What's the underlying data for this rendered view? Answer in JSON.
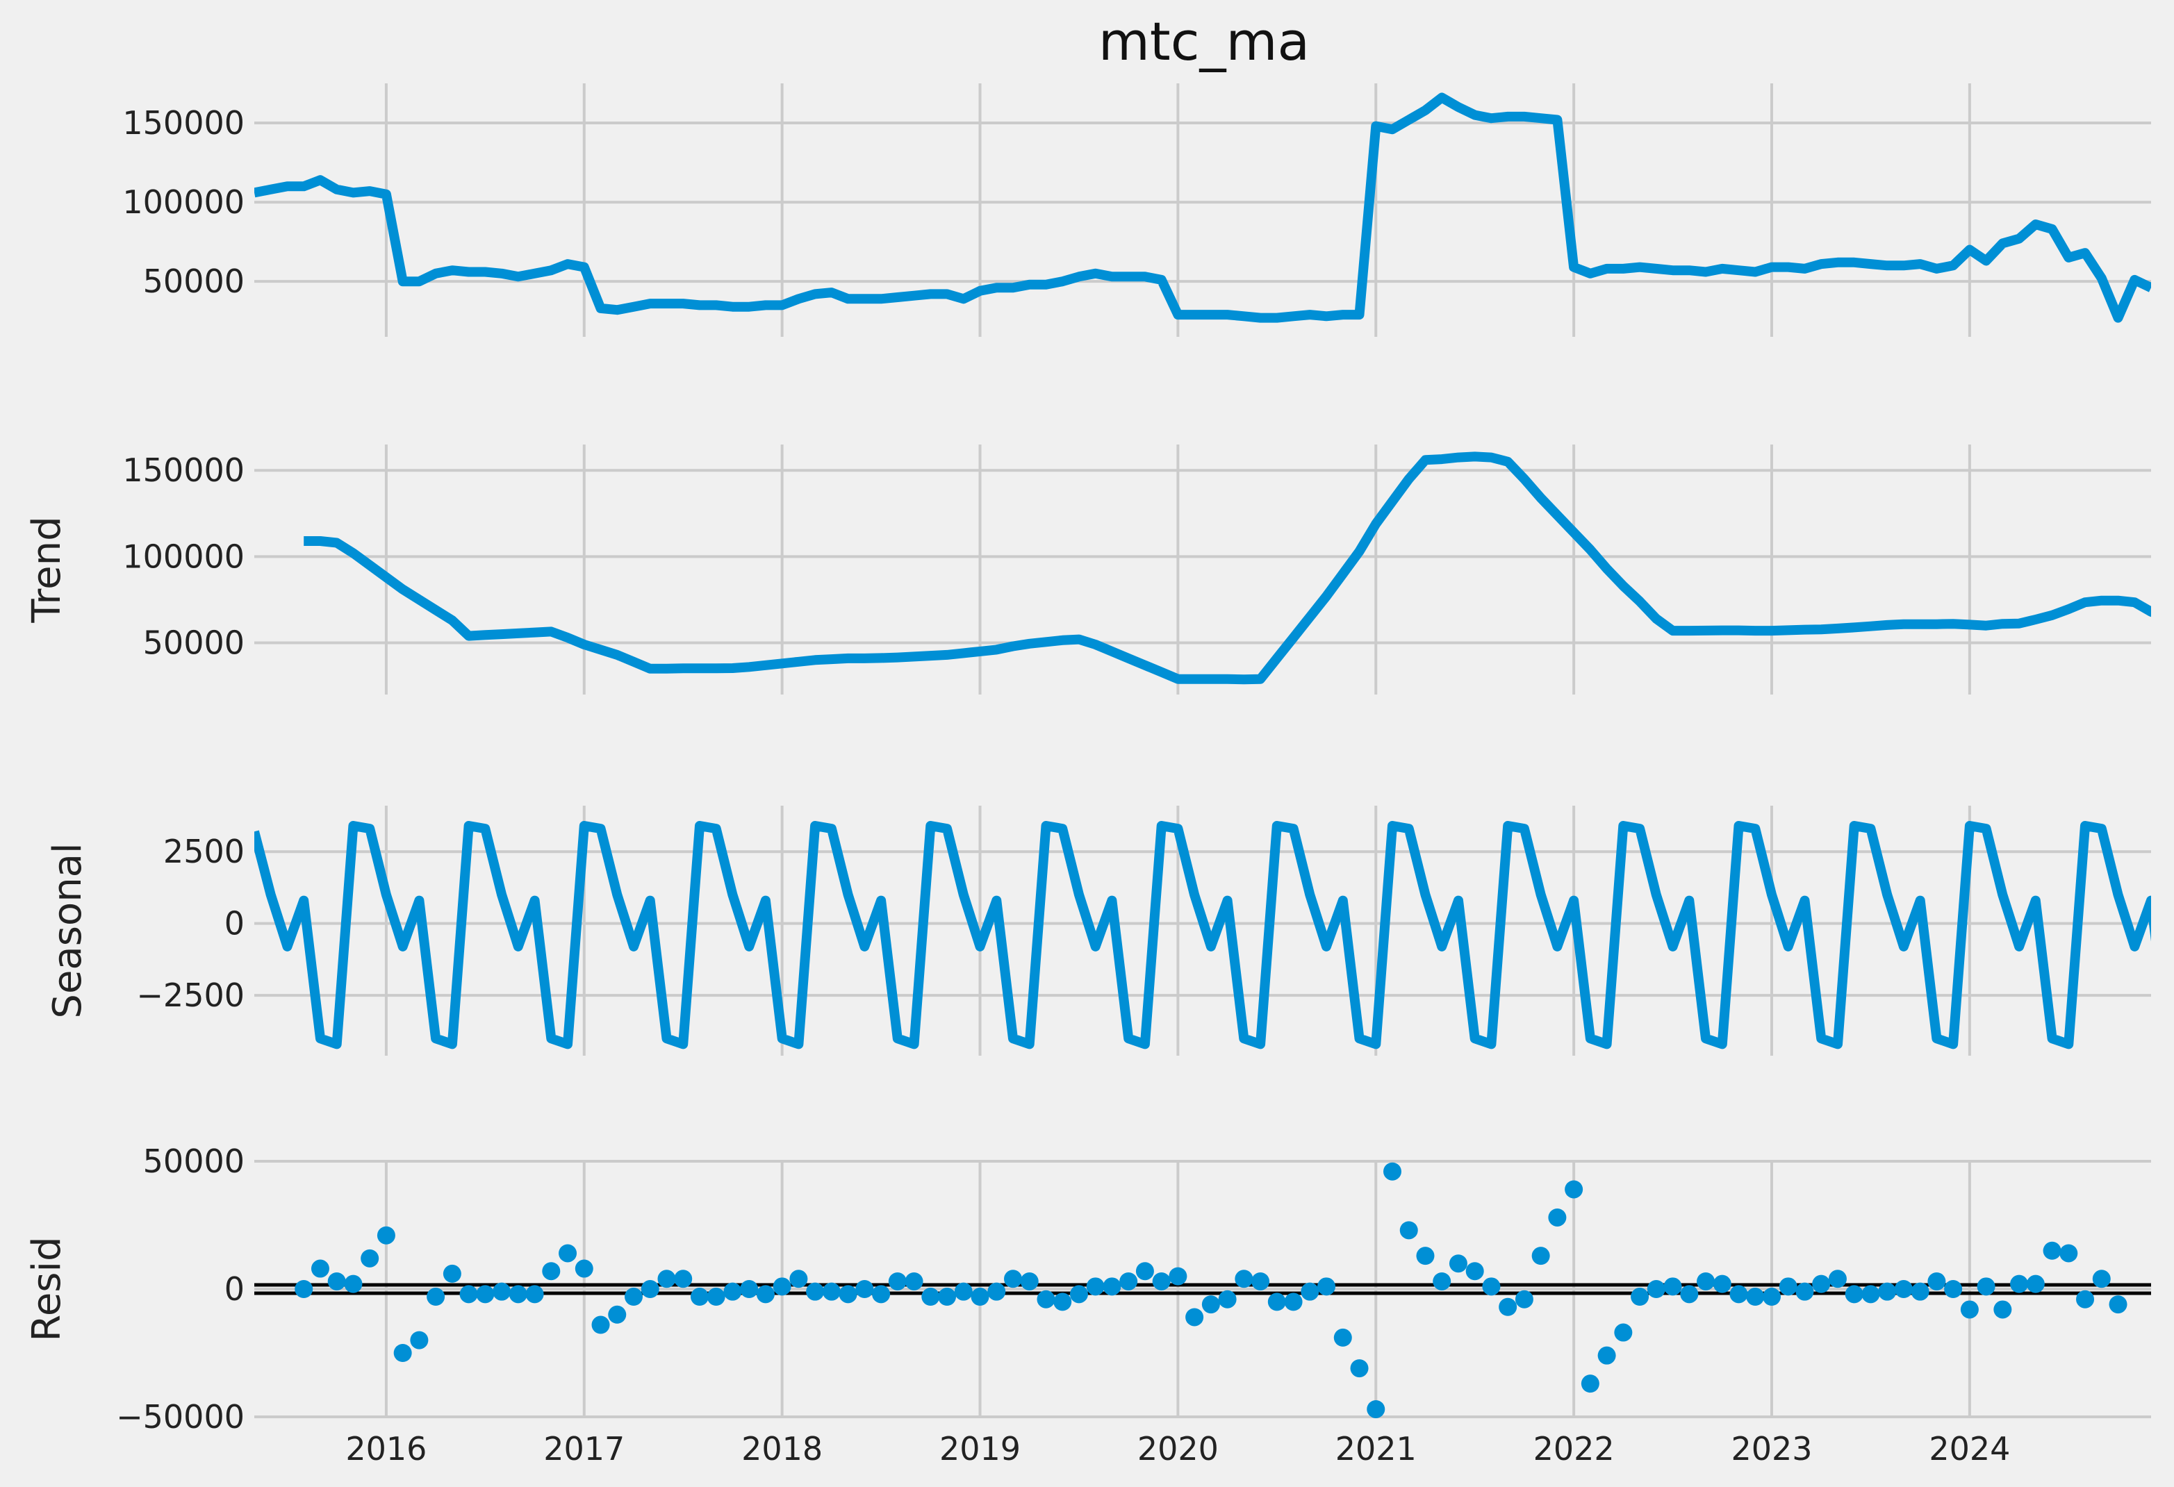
{
  "chart_data": {
    "type": "line",
    "title": "mtc_ma",
    "x_tick_labels": [
      "2016",
      "2017",
      "2018",
      "2019",
      "2020",
      "2021",
      "2022",
      "2023",
      "2024"
    ],
    "x_range": [
      "2015-05",
      "2024-12"
    ],
    "x_start": "2015-05",
    "grid": true,
    "colors": {
      "series": "#008fd5",
      "background": "#f0f0f0",
      "grid": "#cbcbcb",
      "zero_line": "#000000"
    },
    "panels": [
      {
        "name": "observed",
        "ylabel": "",
        "type": "line",
        "ylim": [
          15000,
          175000
        ],
        "yticks": [
          50000,
          100000,
          150000
        ],
        "ytick_labels": [
          "50000",
          "100000",
          "150000"
        ],
        "values": [
          106000,
          108000,
          110000,
          110000,
          114000,
          108000,
          106000,
          107000,
          105000,
          50000,
          50000,
          55000,
          57000,
          56000,
          56000,
          55000,
          53000,
          55000,
          57000,
          61000,
          59000,
          33000,
          32000,
          34000,
          36000,
          36000,
          36000,
          35000,
          35000,
          34000,
          34000,
          35000,
          35000,
          39000,
          42000,
          43000,
          39000,
          39000,
          39000,
          40000,
          41000,
          42000,
          42000,
          39000,
          44000,
          46000,
          46000,
          48000,
          48000,
          50000,
          53000,
          55000,
          53000,
          53000,
          53000,
          51000,
          29000,
          29000,
          29000,
          29000,
          28000,
          27000,
          27000,
          28000,
          29000,
          28000,
          29000,
          29000,
          148000,
          146000,
          152000,
          158000,
          166000,
          160000,
          155000,
          153000,
          154000,
          154000,
          153000,
          152000,
          59000,
          55000,
          58000,
          58000,
          59000,
          58000,
          57000,
          57000,
          56000,
          58000,
          57000,
          56000,
          59000,
          59000,
          58000,
          61000,
          62000,
          62000,
          61000,
          60000,
          60000,
          61000,
          58000,
          60000,
          70000,
          63000,
          74000,
          77000,
          86000,
          83000,
          65000,
          68000,
          52000,
          27000,
          51000,
          46000
        ]
      },
      {
        "name": "trend",
        "ylabel": "Trend",
        "type": "line",
        "ylim": [
          20000,
          165000
        ],
        "yticks": [
          50000,
          100000,
          150000
        ],
        "ytick_labels": [
          "50000",
          "100000",
          "150000"
        ],
        "values": [
          null,
          null,
          null,
          109000,
          109000,
          108000,
          102000,
          95000,
          88000,
          81000,
          75000,
          69000,
          63000,
          54000,
          54500,
          55000,
          55500,
          56000,
          56500,
          53000,
          49000,
          46000,
          43000,
          39000,
          35000,
          35000,
          35200,
          35200,
          35200,
          35300,
          36000,
          37000,
          38000,
          39000,
          40000,
          40500,
          41000,
          41000,
          41200,
          41500,
          42000,
          42500,
          43000,
          44000,
          45000,
          46000,
          48000,
          49500,
          50500,
          51500,
          52000,
          49000,
          45000,
          41000,
          37000,
          33000,
          29000,
          29000,
          29000,
          29000,
          28800,
          29000,
          41000,
          53000,
          65000,
          77000,
          90000,
          103000,
          119000,
          132000,
          145000,
          156000,
          156500,
          157500,
          158000,
          157500,
          155000,
          145000,
          134000,
          124000,
          114000,
          104000,
          93000,
          83000,
          74000,
          64000,
          57000,
          57000,
          57100,
          57200,
          57200,
          57000,
          57000,
          57300,
          57600,
          57800,
          58300,
          58900,
          59600,
          60300,
          60800,
          60800,
          60800,
          61000,
          60500,
          60000,
          61000,
          61200,
          63500,
          66000,
          69500,
          73500,
          74500,
          74500,
          73500,
          68000,
          64500,
          58000
        ]
      },
      {
        "name": "seasonal",
        "ylabel": "Seasonal",
        "type": "line",
        "ylim": [
          -4600,
          4100
        ],
        "yticks": [
          -2500,
          0,
          2500
        ],
        "ytick_labels": [
          "−2500",
          "0",
          "2500"
        ],
        "values": [
          3200,
          1000,
          -800,
          800,
          -4000,
          -4200,
          3400,
          3300,
          1000,
          -800,
          800,
          -4000,
          -4200,
          3400,
          3300,
          1000,
          -800,
          800,
          -4000,
          -4200,
          3400,
          3300,
          1000,
          -800,
          800,
          -4000,
          -4200,
          3400,
          3300,
          1000,
          -800,
          800,
          -4000,
          -4200,
          3400,
          3300,
          1000,
          -800,
          800,
          -4000,
          -4200,
          3400,
          3300,
          1000,
          -800,
          800,
          -4000,
          -4200,
          3400,
          3300,
          1000,
          -800,
          800,
          -4000,
          -4200,
          3400,
          3300,
          1000,
          -800,
          800,
          -4000,
          -4200,
          3400,
          3300,
          1000,
          -800,
          800,
          -4000,
          -4200,
          3400,
          3300,
          1000,
          -800,
          800,
          -4000,
          -4200,
          3400,
          3300,
          1000,
          -800,
          800,
          -4000,
          -4200,
          3400,
          3300,
          1000,
          -800,
          800,
          -4000,
          -4200,
          3400,
          3300,
          1000,
          -800,
          800,
          -4000,
          -4200,
          3400,
          3300,
          1000,
          -800,
          800,
          -4000,
          -4200,
          3400,
          3300,
          1000,
          -800,
          800,
          -4000,
          -4200,
          3400,
          3300,
          1000,
          -800,
          800,
          -4000
        ]
      },
      {
        "name": "resid",
        "ylabel": "Resid",
        "type": "scatter",
        "ylim": [
          -50000,
          50000
        ],
        "yticks": [
          -50000,
          0,
          50000
        ],
        "ytick_labels": [
          "−50000",
          "0",
          "50000"
        ],
        "values": [
          null,
          null,
          null,
          0,
          8000,
          3000,
          2000,
          12000,
          21000,
          -25000,
          -20000,
          -3000,
          6000,
          -2000,
          -2000,
          -1000,
          -2000,
          -2000,
          7000,
          14000,
          8000,
          -14000,
          -10000,
          -3000,
          0,
          4000,
          4000,
          -3000,
          -3000,
          -1000,
          0,
          -2000,
          1000,
          4000,
          -1000,
          -1000,
          -2000,
          0,
          -2000,
          3000,
          3000,
          -3000,
          -3000,
          -1000,
          -3000,
          -1000,
          4000,
          3000,
          -4000,
          -5000,
          -2000,
          1000,
          1000,
          3000,
          7000,
          3000,
          5000,
          -11000,
          -6000,
          -4000,
          4000,
          3000,
          -5000,
          -5000,
          -1000,
          1000,
          -19000,
          -31000,
          -47000,
          46000,
          23000,
          13000,
          3000,
          10000,
          7000,
          1000,
          -7000,
          -4000,
          13000,
          28000,
          39000,
          -37000,
          -26000,
          -17000,
          -3000,
          0,
          1000,
          -2000,
          3000,
          2000,
          -2000,
          -3000,
          -3000,
          1000,
          -1000,
          2000,
          4000,
          -2000,
          -2000,
          -1000,
          0,
          -1000,
          3000,
          0,
          -8000,
          1000,
          -8000,
          2000,
          2000,
          15000,
          14000,
          -4000,
          4000,
          -6000,
          null,
          null,
          null
        ]
      }
    ]
  }
}
